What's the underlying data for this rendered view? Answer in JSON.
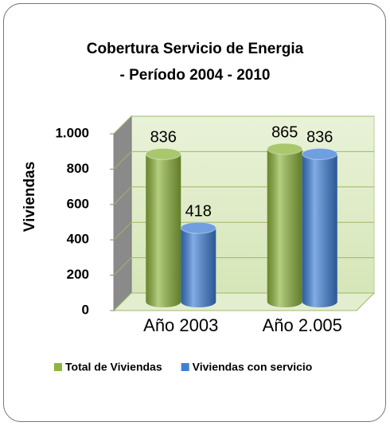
{
  "chart_data": {
    "type": "bar3d",
    "title": [
      "Cobertura Servicio de Energia",
      "- Período 2004 - 2010"
    ],
    "y_label": "Viviendas",
    "categories": [
      "Año 2003",
      "Año 2.005"
    ],
    "series": [
      {
        "name": "Total de Viviendas",
        "color": "#8db43c",
        "values": [
          836,
          865
        ]
      },
      {
        "name": "Viviendas con servicio",
        "color": "#3f7fd6",
        "values": [
          418,
          836
        ]
      }
    ],
    "ylim": [
      0,
      1000
    ],
    "yticks": [
      0,
      200,
      400,
      600,
      800,
      {
        "value": 1000,
        "label": "1.000"
      }
    ],
    "grid": true,
    "legend": "bottom"
  }
}
